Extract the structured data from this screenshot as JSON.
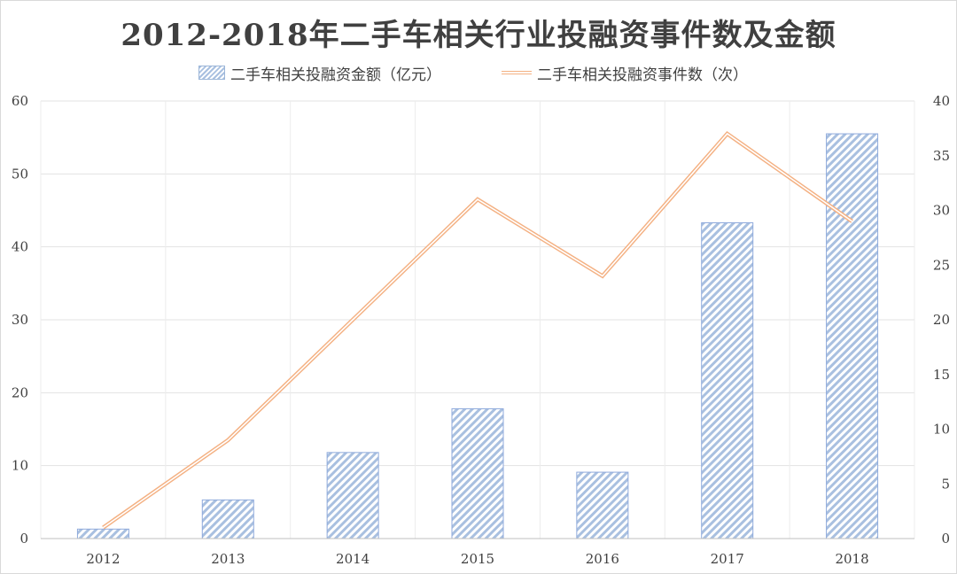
{
  "chart_data": {
    "type": "bar",
    "title": "2012-2018年二手车相关行业投融资事件数及金额",
    "categories": [
      "2012",
      "2013",
      "2014",
      "2015",
      "2016",
      "2017",
      "2018"
    ],
    "series": [
      {
        "name": "二手车相关投融资金额（亿元）",
        "type": "bar",
        "axis": "left",
        "values": [
          1.3,
          5.3,
          11.8,
          17.8,
          9.1,
          43.3,
          55.5
        ],
        "color": "#8faadc"
      },
      {
        "name": "二手车相关投融资事件数（次）",
        "type": "line",
        "axis": "right",
        "values": [
          1,
          9,
          20,
          31,
          24,
          37,
          29
        ],
        "color": "#f4b183"
      }
    ],
    "y_left": {
      "min": 0,
      "max": 60,
      "ticks": [
        0,
        10,
        20,
        30,
        40,
        50,
        60
      ]
    },
    "y_right": {
      "min": 0,
      "max": 40,
      "ticks": [
        0,
        5,
        10,
        15,
        20,
        25,
        30,
        35,
        40
      ]
    },
    "grid": true,
    "legend_position": "top"
  }
}
